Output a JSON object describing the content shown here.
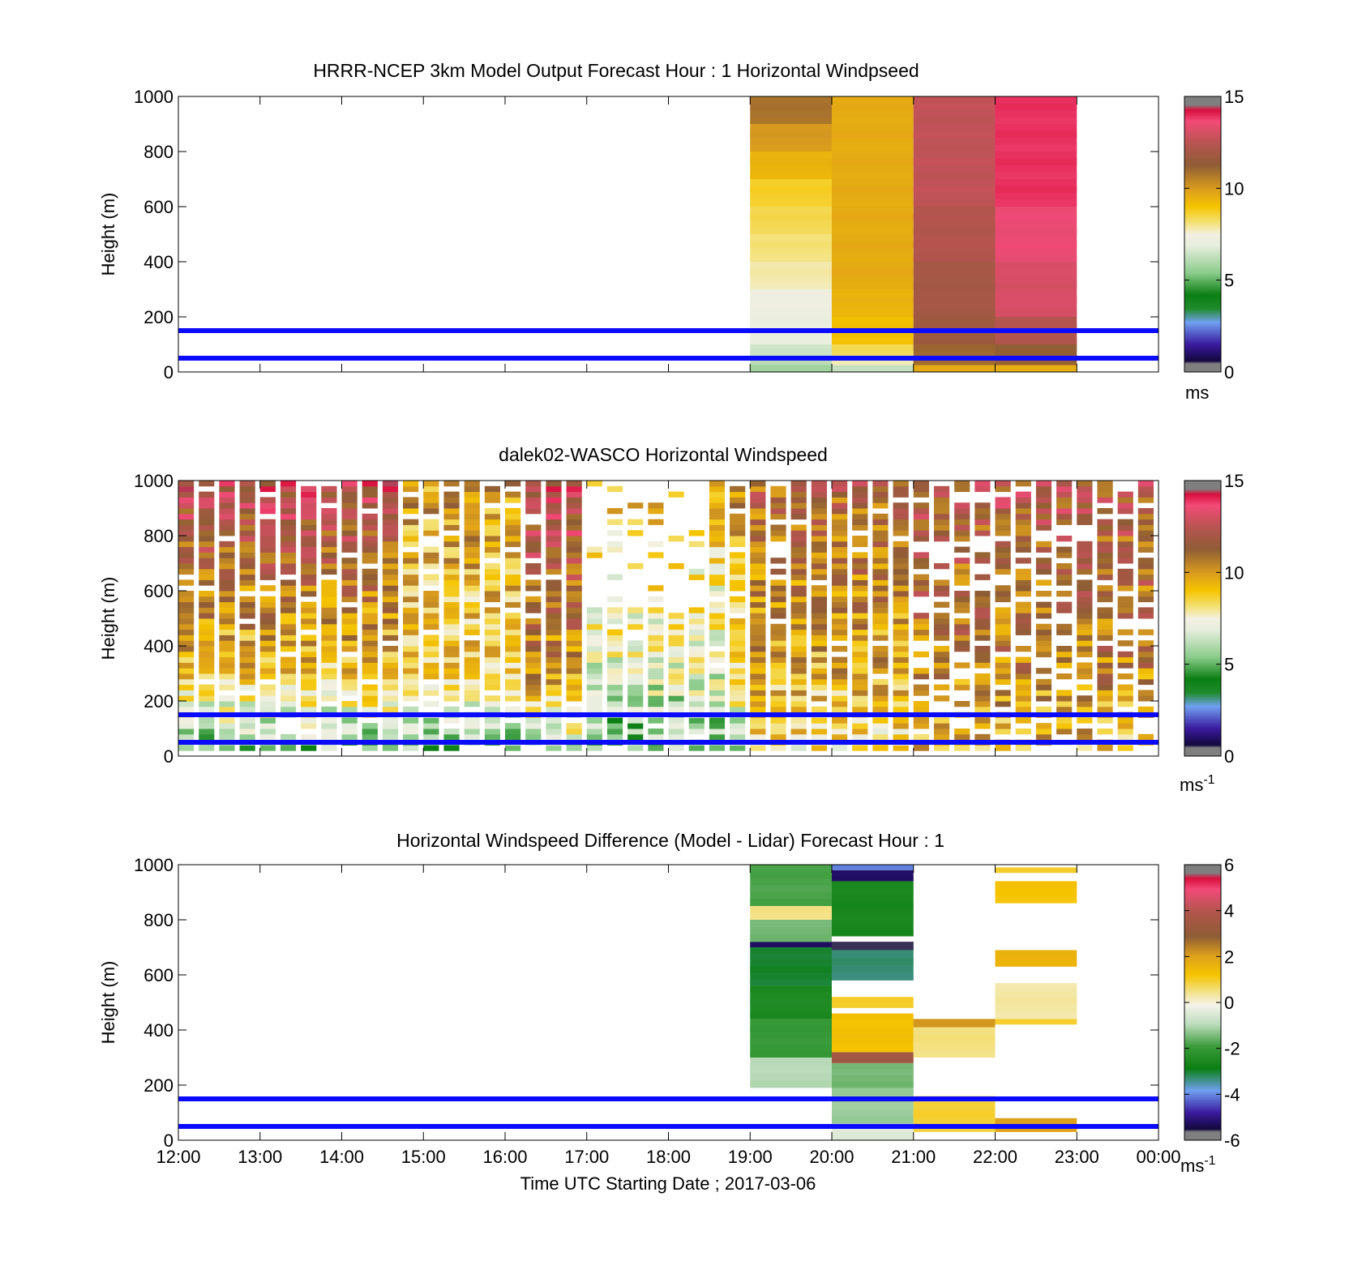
{
  "chart_data": [
    {
      "type": "heatmap",
      "title": "HRRR-NCEP 3km Model Output   Forecast Hour : 1 Horizontal Windpseed",
      "ylabel": "Height (m)",
      "xlabel": "",
      "ylim": [
        0,
        1000
      ],
      "yticks": [
        "0",
        "200",
        "400",
        "600",
        "800",
        "1000"
      ],
      "xlim_hours": [
        12,
        24
      ],
      "colorbar": {
        "range": [
          0,
          15
        ],
        "ticks": [
          "0",
          "5",
          "10",
          "15"
        ],
        "unit_base": "ms",
        "unit_sup": "",
        "scale": "speed"
      },
      "reference_lines_m": [
        50,
        150
      ],
      "columns": [
        {
          "time": "19:00",
          "layers": [
            {
              "h0": 0,
              "h1": 25,
              "v": 5.8
            },
            {
              "h0": 25,
              "h1": 60,
              "v": 6.2
            },
            {
              "h0": 60,
              "h1": 100,
              "v": 6.5
            },
            {
              "h0": 100,
              "h1": 200,
              "v": 7.0
            },
            {
              "h0": 200,
              "h1": 300,
              "v": 7.2
            },
            {
              "h0": 300,
              "h1": 400,
              "v": 7.8
            },
            {
              "h0": 400,
              "h1": 500,
              "v": 8.1
            },
            {
              "h0": 500,
              "h1": 600,
              "v": 8.4
            },
            {
              "h0": 600,
              "h1": 700,
              "v": 8.7
            },
            {
              "h0": 700,
              "h1": 800,
              "v": 9.4
            },
            {
              "h0": 800,
              "h1": 900,
              "v": 10.0
            },
            {
              "h0": 900,
              "h1": 1000,
              "v": 10.8
            }
          ]
        },
        {
          "time": "20:00",
          "layers": [
            {
              "h0": 0,
              "h1": 25,
              "v": 6.4
            },
            {
              "h0": 25,
              "h1": 60,
              "v": 7.8
            },
            {
              "h0": 60,
              "h1": 100,
              "v": 8.4
            },
            {
              "h0": 100,
              "h1": 200,
              "v": 9.1
            },
            {
              "h0": 200,
              "h1": 300,
              "v": 9.4
            },
            {
              "h0": 300,
              "h1": 1000,
              "v": 9.6
            }
          ]
        },
        {
          "time": "21:00",
          "layers": [
            {
              "h0": 0,
              "h1": 25,
              "v": 9.7
            },
            {
              "h0": 25,
              "h1": 100,
              "v": 11.0
            },
            {
              "h0": 100,
              "h1": 200,
              "v": 11.7
            },
            {
              "h0": 200,
              "h1": 400,
              "v": 11.9
            },
            {
              "h0": 400,
              "h1": 600,
              "v": 12.3
            },
            {
              "h0": 600,
              "h1": 1000,
              "v": 12.6
            }
          ]
        },
        {
          "time": "22:00",
          "layers": [
            {
              "h0": 0,
              "h1": 25,
              "v": 9.6
            },
            {
              "h0": 25,
              "h1": 100,
              "v": 11.2
            },
            {
              "h0": 100,
              "h1": 200,
              "v": 12.3
            },
            {
              "h0": 200,
              "h1": 400,
              "v": 13.1
            },
            {
              "h0": 400,
              "h1": 600,
              "v": 13.5
            },
            {
              "h0": 600,
              "h1": 1000,
              "v": 13.9
            }
          ]
        }
      ]
    },
    {
      "type": "heatmap",
      "title": "dalek02-WASCO  Horizontal Windspeed",
      "ylabel": "Height (m)",
      "xlabel": "",
      "ylim": [
        0,
        1000
      ],
      "yticks": [
        "0",
        "200",
        "400",
        "600",
        "800",
        "1000"
      ],
      "xlim_hours": [
        12,
        24
      ],
      "colorbar": {
        "range": [
          0,
          15
        ],
        "ticks": [
          "0",
          "5",
          "10",
          "15"
        ],
        "unit_base": "ms",
        "unit_sup": "-1",
        "scale": "speed"
      },
      "reference_lines_m": [
        50,
        150
      ],
      "columns_per_hour": 4,
      "profile_regimes": [
        {
          "t0": "12:00",
          "t1": "14:45",
          "surface": 5,
          "mid": 9,
          "top": 13
        },
        {
          "t0": "14:45",
          "t1": "16:15",
          "surface": 5,
          "mid": 8.5,
          "top": 10
        },
        {
          "t0": "16:15",
          "t1": "17:00",
          "surface": 6,
          "mid": 10,
          "top": 13
        },
        {
          "t0": "17:00",
          "t1": "18:45",
          "surface": 5,
          "mid": 7,
          "top": 9
        },
        {
          "t0": "18:45",
          "t1": "19:00",
          "surface": 6,
          "mid": 8,
          "top": 11
        },
        {
          "t0": "19:00",
          "t1": "21:00",
          "surface": 8,
          "mid": 9.5,
          "top": 11.5
        },
        {
          "t0": "21:00",
          "t1": "24:00",
          "surface": 9,
          "mid": 10.5,
          "top": 12
        }
      ]
    },
    {
      "type": "heatmap",
      "title": "Horizontal Windspeed Difference (Model - Lidar) Forecast Hour : 1",
      "ylabel": "Height (m)",
      "xlabel": "Time UTC  Starting Date ; 2017-03-06",
      "ylim": [
        0,
        1000
      ],
      "yticks": [
        "0",
        "200",
        "400",
        "600",
        "800",
        "1000"
      ],
      "xticks": [
        "12:00",
        "13:00",
        "14:00",
        "15:00",
        "16:00",
        "17:00",
        "18:00",
        "19:00",
        "20:00",
        "21:00",
        "22:00",
        "23:00",
        "00:00"
      ],
      "xlim_hours": [
        12,
        24
      ],
      "colorbar": {
        "range": [
          -6,
          6
        ],
        "ticks": [
          "-6",
          "-4",
          "-2",
          "0",
          "2",
          "4",
          "6"
        ],
        "unit_base": "ms",
        "unit_sup": "-1",
        "scale": "diff"
      },
      "reference_lines_m": [
        50,
        150
      ],
      "columns": [
        {
          "time": "19:00",
          "layers": [
            {
              "h0": 190,
              "h1": 300,
              "v": -1.0
            },
            {
              "h0": 300,
              "h1": 440,
              "v": -2.0
            },
            {
              "h0": 440,
              "h1": 560,
              "v": -2.5
            },
            {
              "h0": 560,
              "h1": 700,
              "v": -3.0
            },
            {
              "h0": 700,
              "h1": 720,
              "v": -5.2
            },
            {
              "h0": 720,
              "h1": 800,
              "v": -1.5
            },
            {
              "h0": 800,
              "h1": 850,
              "v": 0.5
            },
            {
              "h0": 850,
              "h1": 1000,
              "v": -1.8
            }
          ]
        },
        {
          "time": "20:00",
          "layers": [
            {
              "h0": 0,
              "h1": 60,
              "v": -0.4
            },
            {
              "h0": 60,
              "h1": 190,
              "v": -1.2
            },
            {
              "h0": 190,
              "h1": 280,
              "v": -1.5
            },
            {
              "h0": 280,
              "h1": 320,
              "v": 3.5
            },
            {
              "h0": 320,
              "h1": 460,
              "v": 1.3
            },
            {
              "h0": 480,
              "h1": 520,
              "v": 1.0
            },
            {
              "h0": 580,
              "h1": 690,
              "v": -3.3
            },
            {
              "h0": 690,
              "h1": 720,
              "v": -5.5
            },
            {
              "h0": 740,
              "h1": 940,
              "v": -2.6
            },
            {
              "h0": 940,
              "h1": 980,
              "v": -5.2
            },
            {
              "h0": 980,
              "h1": 1000,
              "v": -4.0
            }
          ]
        },
        {
          "time": "21:00",
          "layers": [
            {
              "h0": 30,
              "h1": 160,
              "v": 0.9
            },
            {
              "h0": 300,
              "h1": 410,
              "v": 0.5
            },
            {
              "h0": 410,
              "h1": 440,
              "v": 2.2
            }
          ]
        },
        {
          "time": "22:00",
          "layers": [
            {
              "h0": 30,
              "h1": 80,
              "v": 2.0
            },
            {
              "h0": 420,
              "h1": 440,
              "v": 1.0
            },
            {
              "h0": 440,
              "h1": 570,
              "v": 0.3
            },
            {
              "h0": 630,
              "h1": 690,
              "v": 1.6
            },
            {
              "h0": 860,
              "h1": 940,
              "v": 1.2
            },
            {
              "h0": 970,
              "h1": 990,
              "v": 1.0
            }
          ]
        }
      ]
    }
  ]
}
